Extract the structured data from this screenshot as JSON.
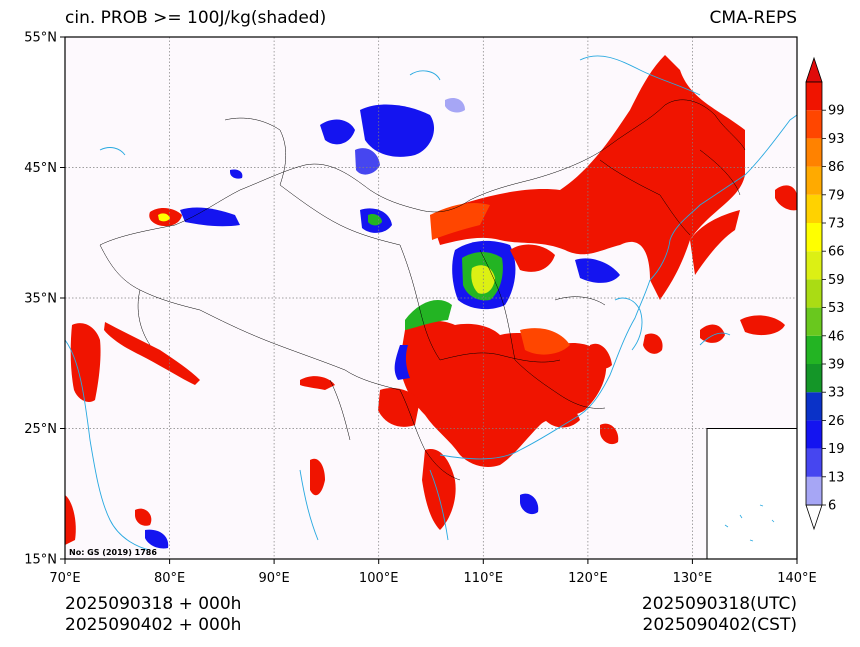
{
  "title_left": "cin. PROB >= 100J/kg(shaded)",
  "title_right": "CMA-REPS",
  "map": {
    "lon_range": [
      70,
      140
    ],
    "lat_range": [
      15,
      55
    ],
    "lon_ticks": [
      "70°E",
      "80°E",
      "90°E",
      "100°E",
      "110°E",
      "120°E",
      "130°E",
      "140°E"
    ],
    "lat_ticks": [
      "15°N",
      "25°N",
      "35°N",
      "45°N",
      "55°N"
    ],
    "background_color": "#fdf9fd",
    "coastline_color": "#29a9e0",
    "boundary_color": "#000000",
    "gridline_style": "dotted",
    "approval_number": "No: GS (2019) 1786",
    "inset": "south-china-sea"
  },
  "colorbar": {
    "extend": "both",
    "levels": [
      "6",
      "13",
      "19",
      "26",
      "33",
      "39",
      "46",
      "53",
      "59",
      "66",
      "73",
      "79",
      "86",
      "93",
      "99"
    ],
    "colors": [
      "#a6a6f5",
      "#4646f0",
      "#1414f0",
      "#0a32c8",
      "#149628",
      "#23b423",
      "#69c81e",
      "#aadc14",
      "#dcf014",
      "#ffff00",
      "#ffd200",
      "#ffaa00",
      "#ff8200",
      "#ff4600",
      "#f01400"
    ]
  },
  "footer": {
    "left_line1": "2025090318  +  000h",
    "left_line2": "2025090402  +  000h",
    "right_line1": "2025090318(UTC)",
    "right_line2": "2025090402(CST)"
  }
}
